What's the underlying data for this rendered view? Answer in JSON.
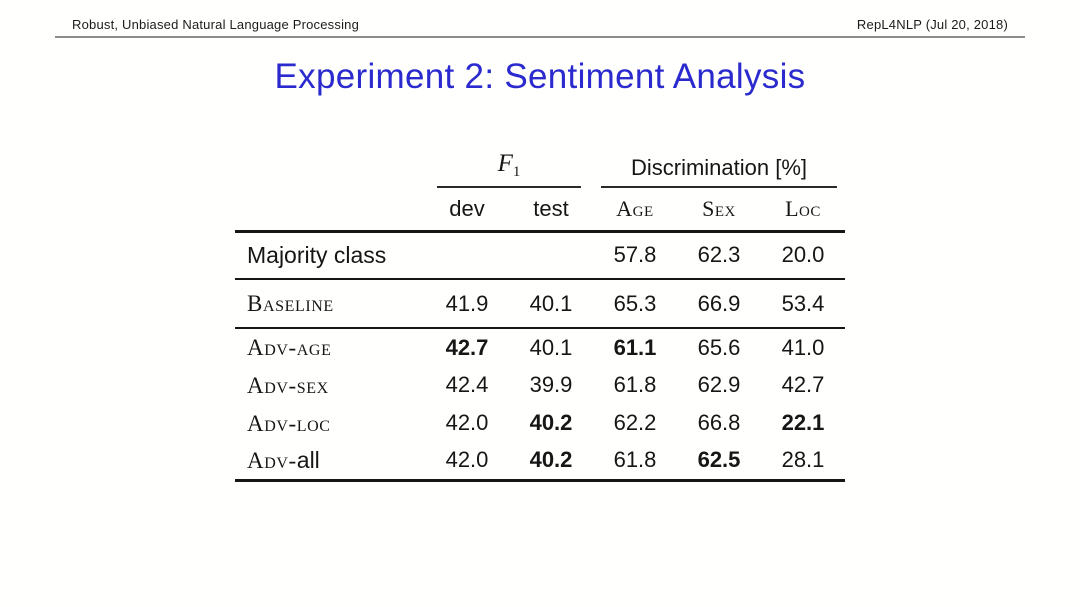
{
  "header": {
    "left": "Robust, Unbiased Natural Language Processing",
    "right": "RepL4NLP (Jul 20, 2018)"
  },
  "title": "Experiment 2: Sentiment Analysis",
  "colors": {
    "title_blue": "#2a2ace",
    "header_rule_gray": "#8c8c8c",
    "table_rule_black": "#161616"
  },
  "table": {
    "group_headers": {
      "f1_letter": "F",
      "f1_subscript": "1",
      "discrimination": "Discrimination [%]"
    },
    "col_headers": {
      "dev": "dev",
      "test": "test",
      "age": "Age",
      "sex": "Sex",
      "loc": "Loc"
    },
    "rows": [
      {
        "label_sc": "",
        "label_tail": "Majority class",
        "cells": [
          "",
          "",
          "57.8",
          "62.3",
          "20.0"
        ]
      },
      {
        "label_sc": "Baseline",
        "label_tail": "",
        "cells": [
          "41.9",
          "40.1",
          "65.3",
          "66.9",
          "53.4"
        ]
      },
      {
        "label_sc": "Adv-age",
        "label_tail": "",
        "cells": [
          "42.7",
          "40.1",
          "61.1",
          "65.6",
          "41.0"
        ]
      },
      {
        "label_sc": "Adv-sex",
        "label_tail": "",
        "cells": [
          "42.4",
          "39.9",
          "61.8",
          "62.9",
          "42.7"
        ]
      },
      {
        "label_sc": "Adv-loc",
        "label_tail": "",
        "cells": [
          "42.0",
          "40.2",
          "62.2",
          "66.8",
          "22.1"
        ]
      },
      {
        "label_sc": "Adv-",
        "label_tail": "all",
        "cells": [
          "42.0",
          "40.2",
          "61.8",
          "62.5",
          "28.1"
        ]
      }
    ],
    "bold_cells_note": "bold: Adv-age dev + age; Adv-loc test + loc; Adv-all test + sex"
  }
}
